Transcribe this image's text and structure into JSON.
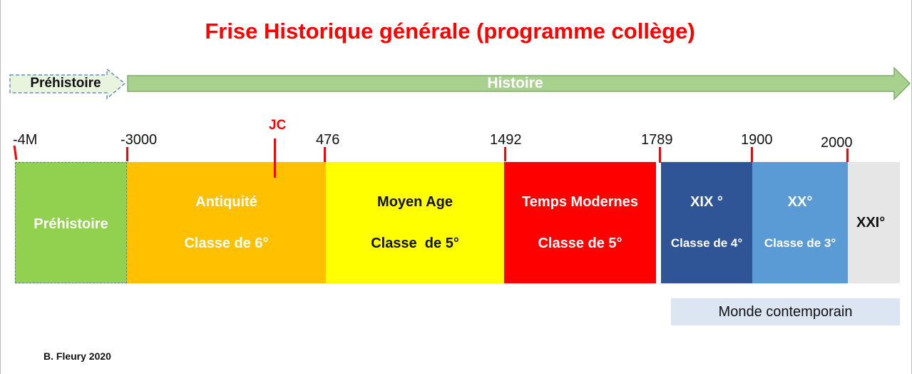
{
  "title": "Frise Historique générale (programme collège)",
  "arrows": {
    "prehistoire": "Préhistoire",
    "histoire": "Histoire"
  },
  "ticks": [
    "-4M",
    "-3000",
    "476",
    "1492",
    "1789",
    "1900",
    "2000"
  ],
  "jc_label": "JC",
  "periods": [
    {
      "name": "Préhistoire",
      "class": ""
    },
    {
      "name": "Antiquité",
      "class": "Classe de 6°"
    },
    {
      "name": "Moyen Age",
      "class": "Classe  de 5°"
    },
    {
      "name": "Temps Modernes",
      "class": "Classe de 5°"
    },
    {
      "name": "XIX °",
      "class": "Classe de 4°"
    },
    {
      "name": "XX°",
      "class": "Classe de 3°"
    },
    {
      "name": "XXI°",
      "class": ""
    }
  ],
  "contemporain": "Monde contemporain",
  "author": "B. Fleury 2020",
  "colors": {
    "title": "#ff0000",
    "prehistoire": "#92d050",
    "antiquite": "#ffc000",
    "moyen_age": "#ffff00",
    "temps_modernes": "#ff0000",
    "xix": "#2f5597",
    "xx": "#5b9bd5",
    "xxi": "#e7e6e6",
    "histoire_arrow": "#a9d18e"
  }
}
